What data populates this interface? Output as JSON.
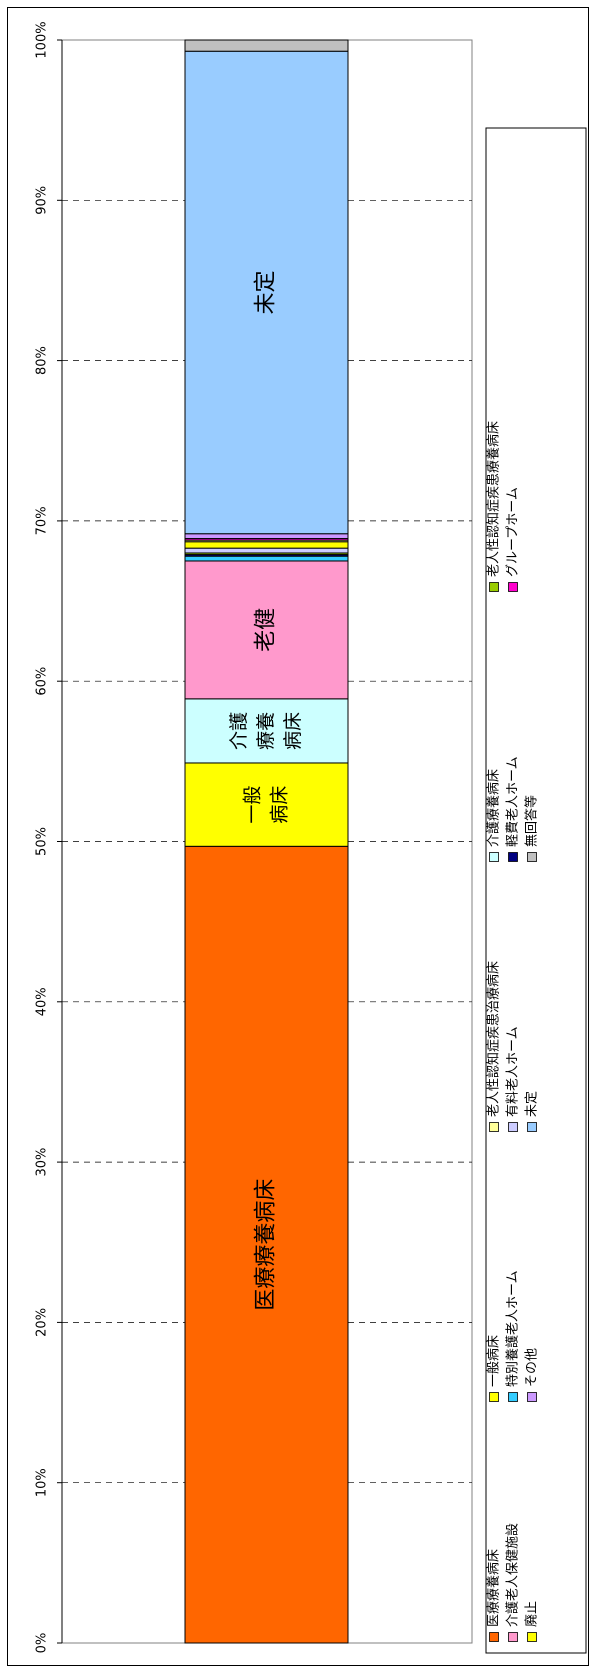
{
  "chart_data": {
    "type": "bar",
    "orientation": "horizontal-stacked",
    "rotation": "rotated 90° clockwise (text reads bottom-to-top)",
    "xlim": [
      0,
      100
    ],
    "x_ticks": [
      "0%",
      "10%",
      "20%",
      "30%",
      "40%",
      "50%",
      "60%",
      "70%",
      "80%",
      "90%",
      "100%"
    ],
    "grid": true,
    "legend_position": "right",
    "segments": [
      {
        "name": "医療療養病床",
        "value": 49.7,
        "color": "#ff6600",
        "label": "医療療養病床",
        "label_lines": [
          "医療療養病床"
        ]
      },
      {
        "name": "一般病床",
        "value": 5.2,
        "color": "#ffff00",
        "label": "一般病床",
        "label_lines": [
          "一般",
          "病床"
        ]
      },
      {
        "name": "介護療養病床",
        "value": 4.0,
        "color": "#ccffff",
        "label": "介護療養病床",
        "label_lines": [
          "介護",
          "療養",
          "病床"
        ]
      },
      {
        "name": "介護老人保健施設",
        "value": 8.6,
        "color": "#ff99cc",
        "label": "老健",
        "label_lines": [
          "老健"
        ]
      },
      {
        "name": "特別養護老人ホーム",
        "value": 0.3,
        "color": "#33ccff",
        "label": "",
        "label_lines": []
      },
      {
        "name": "軽費老人ホーム",
        "value": 0.1,
        "color": "#000080",
        "label": "",
        "label_lines": []
      },
      {
        "name": "老人性認知症疾患療養病床",
        "value": 0.1,
        "color": "#99cc00",
        "label": "",
        "label_lines": []
      },
      {
        "name": "有料老人ホーム",
        "value": 0.3,
        "color": "#ccccff",
        "label": "",
        "label_lines": []
      },
      {
        "name": "廃止",
        "value": 0.4,
        "color": "#ffff00",
        "label": "",
        "label_lines": []
      },
      {
        "name": "老人性認知症疾患治療病床",
        "value": 0.1,
        "color": "#ffff99",
        "label": "",
        "label_lines": []
      },
      {
        "name": "グループホーム",
        "value": 0.1,
        "color": "#ff00cc",
        "label": "",
        "label_lines": []
      },
      {
        "name": "その他",
        "value": 0.3,
        "color": "#cc99ff",
        "label": "",
        "label_lines": []
      },
      {
        "name": "未定",
        "value": 30.1,
        "color": "#99ccff",
        "label": "未定",
        "label_lines": [
          "未定"
        ]
      },
      {
        "name": "無回答等",
        "value": 0.7,
        "color": "#c0c0c0",
        "label": "",
        "label_lines": []
      }
    ],
    "legend": [
      [
        {
          "name": "医療療養病床",
          "color": "#ff6600"
        },
        {
          "name": "介護老人保健施設",
          "color": "#ff99cc"
        },
        {
          "name": "廃止",
          "color": "#ffff00"
        }
      ],
      [
        {
          "name": "一般病床",
          "color": "#ffff00"
        },
        {
          "name": "特別養護老人ホーム",
          "color": "#33ccff"
        },
        {
          "name": "その他",
          "color": "#cc99ff"
        }
      ],
      [
        {
          "name": "老人性認知症疾患治療病床",
          "color": "#ffff99"
        },
        {
          "name": "有料老人ホーム",
          "color": "#ccccff"
        },
        {
          "name": "未定",
          "color": "#99ccff"
        }
      ],
      [
        {
          "name": "介護療養病床",
          "color": "#ccffff"
        },
        {
          "name": "軽費老人ホーム",
          "color": "#000080"
        },
        {
          "name": "無回答等",
          "color": "#c0c0c0"
        }
      ],
      [
        {
          "name": "老人性認知症疾患療養病床",
          "color": "#99cc00"
        },
        {
          "name": "グループホーム",
          "color": "#ff00cc"
        }
      ]
    ]
  }
}
